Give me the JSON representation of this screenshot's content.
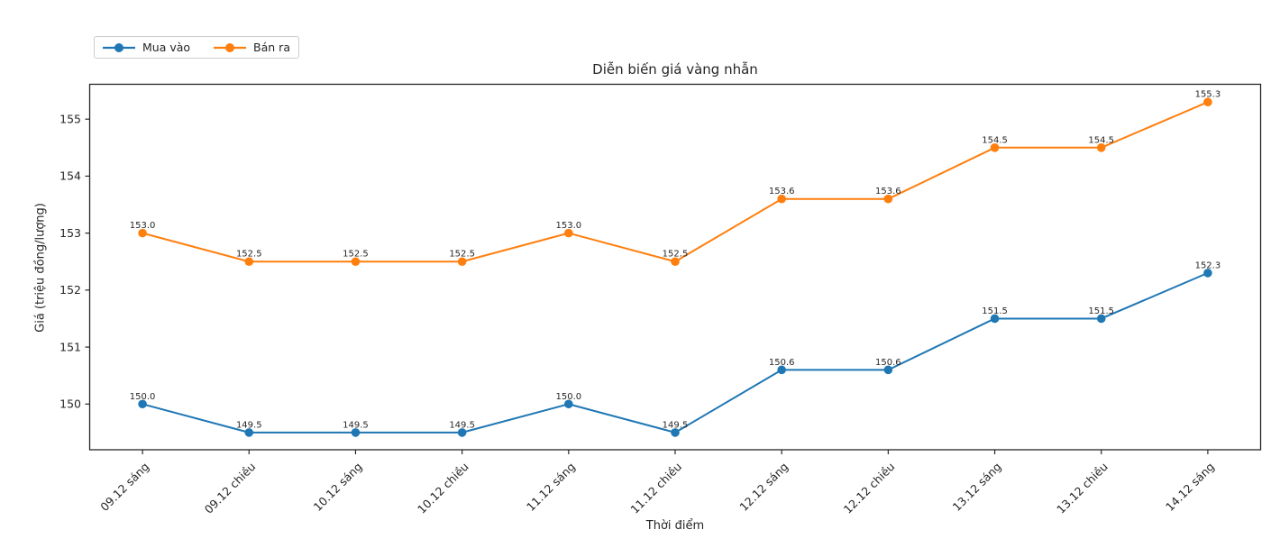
{
  "chart_data": {
    "type": "line",
    "title": "Diễn biến giá vàng nhẫn",
    "xlabel": "Thời điểm",
    "ylabel": "Giá (triệu đồng/lượng)",
    "categories": [
      "09.12 sáng",
      "09.12 chiều",
      "10.12 sáng",
      "10.12 chiều",
      "11.12 sáng",
      "11.12 chiều",
      "12.12 sáng",
      "12.12 chiều",
      "13.12 sáng",
      "13.12 chiều",
      "14.12 sáng"
    ],
    "series": [
      {
        "name": "Mua vào",
        "color": "#1f77b4",
        "values": [
          150.0,
          149.5,
          149.5,
          149.5,
          150.0,
          149.5,
          150.6,
          150.6,
          151.5,
          151.5,
          152.3
        ],
        "point_labels": [
          "150.0",
          "149.5",
          "149.5",
          "149.5",
          "150.0",
          "149.5",
          "150.6",
          "150.6",
          "151.5",
          "151.5",
          "152.3"
        ]
      },
      {
        "name": "Bán ra",
        "color": "#ff7f0e",
        "values": [
          153.0,
          152.5,
          152.5,
          152.5,
          153.0,
          152.5,
          153.6,
          153.6,
          154.5,
          154.5,
          155.3
        ],
        "point_labels": [
          "153.0",
          "152.5",
          "152.5",
          "152.5",
          "153.0",
          "152.5",
          "153.6",
          "153.6",
          "154.5",
          "154.5",
          "155.3"
        ]
      }
    ],
    "yticks": [
      150,
      151,
      152,
      153,
      154,
      155
    ],
    "ylim": [
      149.19,
      155.62
    ],
    "xlim": [
      -0.5,
      10.5
    ],
    "grid": false,
    "legend_position": "upper-left-outside",
    "marker": "circle",
    "axis_color": "#262626",
    "background": "#ffffff"
  }
}
